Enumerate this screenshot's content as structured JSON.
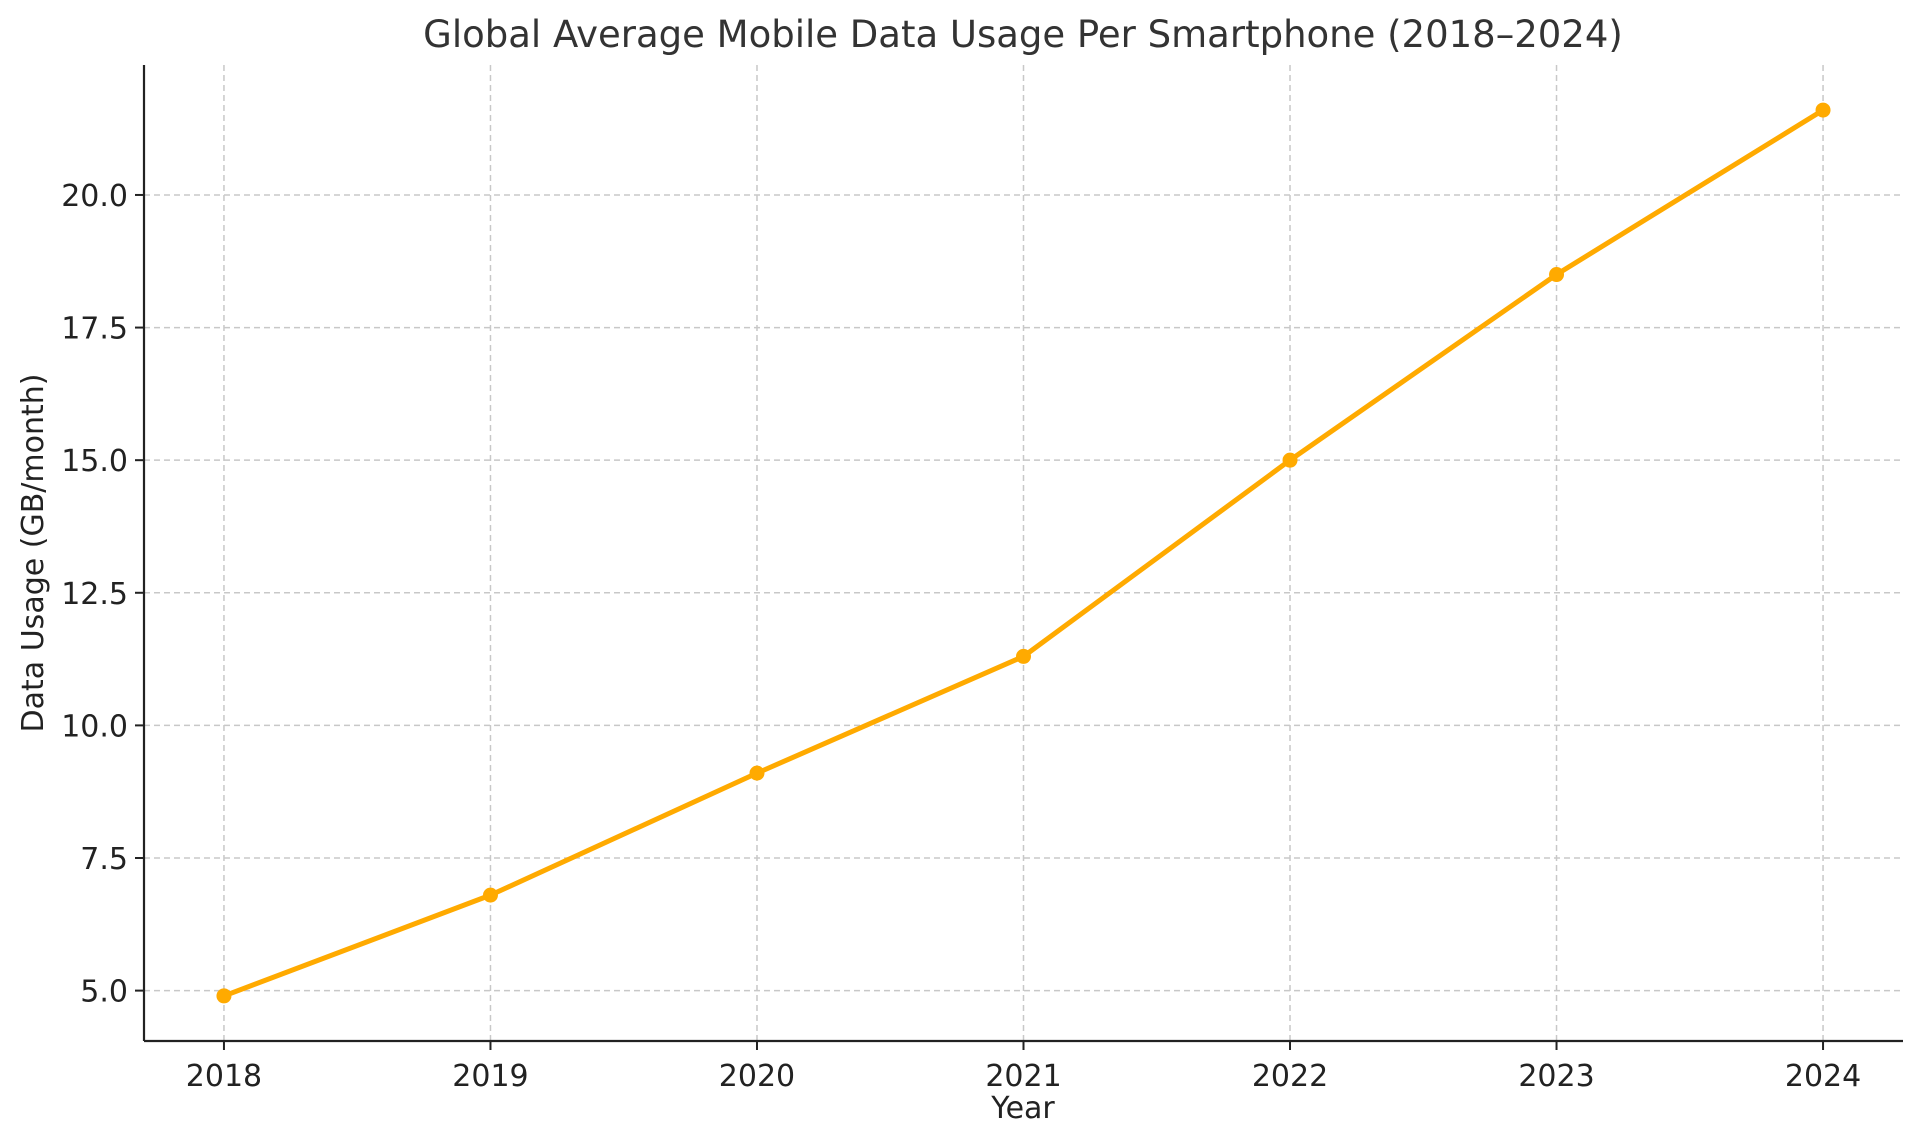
{
  "chart_data": {
    "type": "line",
    "title": "Global Average Mobile Data Usage Per Smartphone (2018–2024)",
    "xlabel": "Year",
    "ylabel": "Data Usage (GB/month)",
    "categories": [
      "2018",
      "2019",
      "2020",
      "2021",
      "2022",
      "2023",
      "2024"
    ],
    "series": [
      {
        "values": [
          4.9,
          6.8,
          9.1,
          11.3,
          15.0,
          18.5,
          21.6
        ],
        "color": "#FFAA00",
        "marker": "circle"
      }
    ],
    "yticks": [
      5.0,
      7.5,
      10.0,
      12.5,
      15.0,
      17.5,
      20.0
    ],
    "ytick_labels": [
      "5.0",
      "7.5",
      "10.0",
      "12.5",
      "15.0",
      "17.5",
      "20.0"
    ],
    "ylim": [
      4.05,
      22.45
    ],
    "xlim": [
      2017.7,
      2024.3
    ],
    "grid": true,
    "legend": "none"
  }
}
